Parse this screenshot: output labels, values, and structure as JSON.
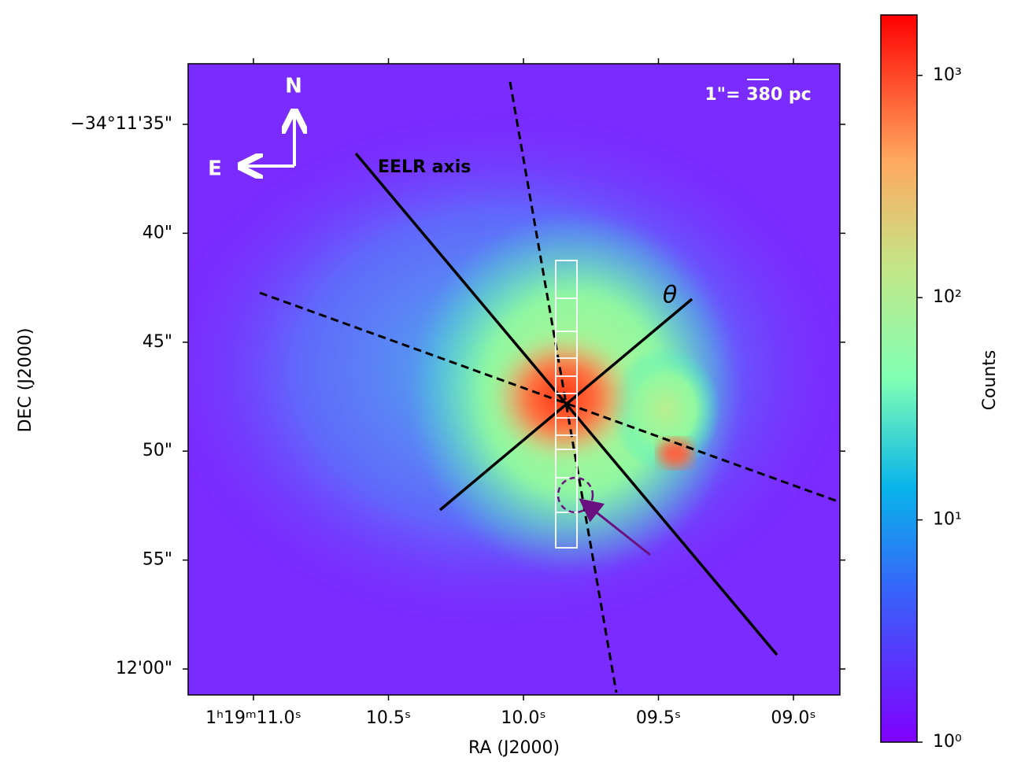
{
  "chart_data": {
    "type": "image",
    "xlabel": "RA (J2000)",
    "ylabel": "DEC (J2000)",
    "xlim": [
      11.242,
      8.828
    ],
    "xticks": [
      {
        "value": 11.0,
        "label": "1ʰ19ᵐ11.0ˢ"
      },
      {
        "value": 10.5,
        "label": "10.5ˢ"
      },
      {
        "value": 10.0,
        "label": "10.0ˢ"
      },
      {
        "value": 9.5,
        "label": "09.5ˢ"
      },
      {
        "value": 9.0,
        "label": "09.0ˢ"
      }
    ],
    "ylim": [
      32.22,
      61.19
    ],
    "yticks": [
      {
        "value": 35,
        "label": "−34°11'35\""
      },
      {
        "value": 40,
        "label": "40\""
      },
      {
        "value": 45,
        "label": "45\""
      },
      {
        "value": 50,
        "label": "50\""
      },
      {
        "value": 55,
        "label": "55\""
      },
      {
        "value": 60,
        "label": "12'00\""
      }
    ],
    "colorbar": {
      "label": "Counts",
      "scale": "log",
      "lim": [
        1,
        1870
      ],
      "ticks": [
        {
          "value": 1,
          "label": "10⁰"
        },
        {
          "value": 10,
          "label": "10¹"
        },
        {
          "value": 100,
          "label": "10²"
        },
        {
          "value": 1000,
          "label": "10³"
        }
      ]
    },
    "annotations": [
      "N",
      "E",
      "EELR axis",
      "θ",
      "1\"= 380 pc"
    ]
  }
}
